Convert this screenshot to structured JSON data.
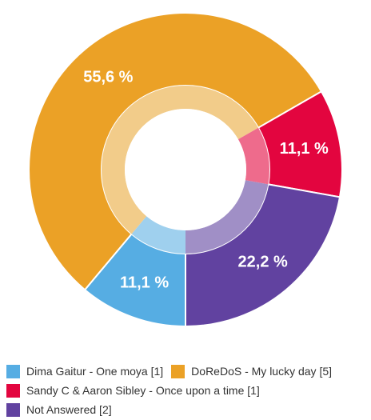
{
  "chart_data": {
    "type": "pie",
    "variant": "donut",
    "start_angle_deg": 180,
    "direction": "clockwise",
    "slices": [
      {
        "name": "Dima Gaitur - One moya [1]",
        "value": 11.1,
        "label": "11,1 %",
        "color": "#56ADE3",
        "inner_color": "#9FD0EE"
      },
      {
        "name": "DoReDoS - My lucky day [5]",
        "value": 55.6,
        "label": "55,6 %",
        "color": "#EBA126",
        "inner_color": "#F2CC8A"
      },
      {
        "name": "Sandy C & Aaron Sibley - Once upon a time [1]",
        "value": 11.1,
        "label": "11,1 %",
        "color": "#E3053F",
        "inner_color": "#EE6B8C"
      },
      {
        "name": "Not Answered [2]",
        "value": 22.2,
        "label": "22,2 %",
        "color": "#6142A0",
        "inner_color": "#A08FC6"
      }
    ]
  },
  "legend": {
    "rows": [
      [
        0,
        1
      ],
      [
        2
      ],
      [
        3
      ]
    ]
  }
}
